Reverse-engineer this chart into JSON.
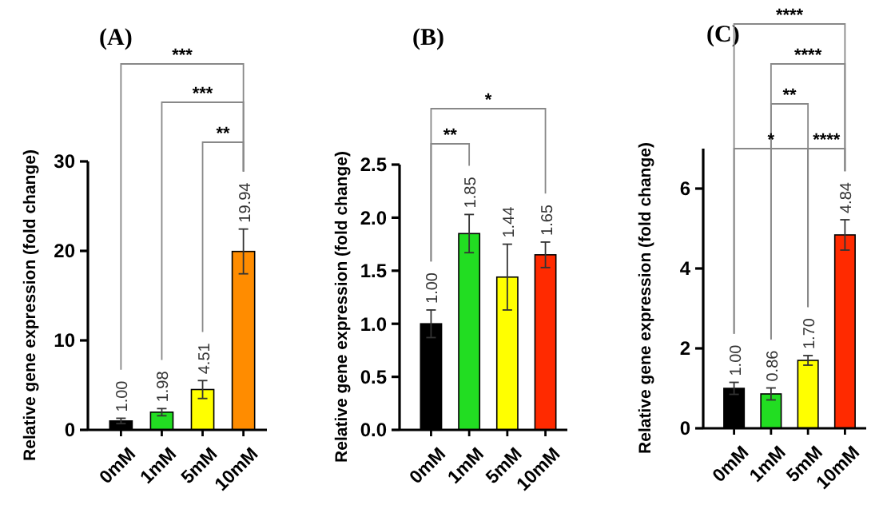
{
  "chart_data": [
    {
      "type": "bar",
      "title": "(A)",
      "ylabel": "Relative gene expression (fold change)",
      "categories": [
        "0mM",
        "1mM",
        "5mM",
        "10mM"
      ],
      "values": [
        1.0,
        1.98,
        4.51,
        19.94
      ],
      "colors": [
        "#000000",
        "#22dd22",
        "#ffff00",
        "#ff8c00"
      ],
      "errors": [
        0.3,
        0.4,
        1.0,
        2.5
      ],
      "value_labels": [
        "1.00",
        "1.98",
        "4.51",
        "19.94"
      ],
      "ylim": [
        0,
        30
      ],
      "yticks": [
        0,
        10,
        20,
        30
      ],
      "grid": false,
      "annotations": [
        "***",
        "***",
        "**"
      ]
    },
    {
      "type": "bar",
      "title": "(B)",
      "ylabel": "Relative gene expression (fold change)",
      "categories": [
        "0mM",
        "1mM",
        "5mM",
        "10mM"
      ],
      "values": [
        1.0,
        1.85,
        1.44,
        1.65
      ],
      "colors": [
        "#000000",
        "#22dd22",
        "#ffff00",
        "#ff2a00"
      ],
      "errors": [
        0.13,
        0.18,
        0.31,
        0.12
      ],
      "value_labels": [
        "1.00",
        "1.85",
        "1.44",
        "1.65"
      ],
      "ylim": [
        0,
        2.5
      ],
      "yticks": [
        {
          "value": 0,
          "label": "0.0"
        },
        {
          "value": 0.5,
          "label": "0.5"
        },
        {
          "value": 1,
          "label": "1.0"
        },
        {
          "value": 1.5,
          "label": "1.5"
        },
        {
          "value": 2,
          "label": "2.0"
        },
        {
          "value": 2.5,
          "label": "2.5"
        }
      ],
      "grid": false,
      "annotations": [
        "*",
        "**"
      ]
    },
    {
      "type": "bar",
      "title": "(C)",
      "ylabel": "Relative gene expression (fold change)",
      "categories": [
        "0mM",
        "1mM",
        "5mM",
        "10mM"
      ],
      "values": [
        1.0,
        0.86,
        1.7,
        4.84
      ],
      "colors": [
        "#000000",
        "#22dd22",
        "#ffff00",
        "#ff2a00"
      ],
      "errors": [
        0.15,
        0.15,
        0.12,
        0.38
      ],
      "value_labels": [
        "1.00",
        "0.86",
        "1.70",
        "4.84"
      ],
      "ylim": [
        0,
        7
      ],
      "yticks": [
        0,
        2,
        4,
        6
      ],
      "grid": false,
      "annotations": [
        "****",
        "****",
        "**",
        "*",
        "****"
      ]
    }
  ]
}
